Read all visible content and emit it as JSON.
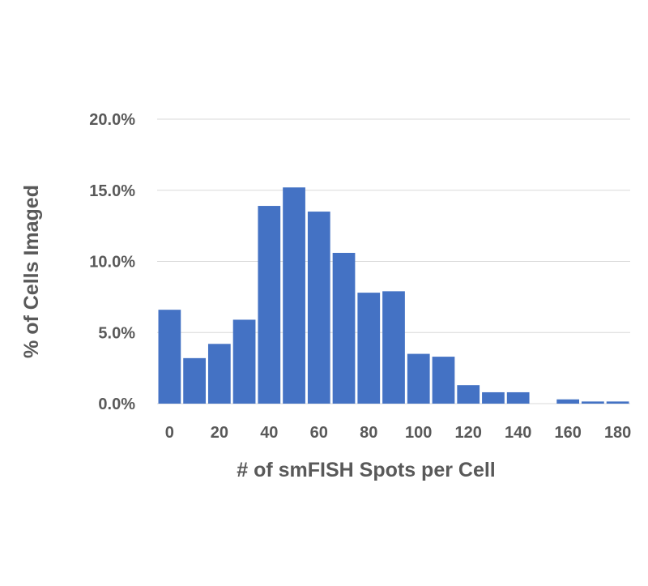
{
  "chart_data": {
    "type": "bar",
    "title": "",
    "xlabel": "# of smFISH Spots per Cell",
    "ylabel": "% of Cells Imaged",
    "ylim": [
      0,
      20
    ],
    "yticks": [
      0,
      5,
      10,
      15,
      20
    ],
    "ytick_labels": [
      "0.0%",
      "5.0%",
      "10.0%",
      "15.0%",
      "20.0%"
    ],
    "bin_starts": [
      0,
      10,
      20,
      30,
      40,
      50,
      60,
      70,
      80,
      90,
      100,
      110,
      120,
      130,
      140,
      150,
      160,
      170,
      180
    ],
    "values": [
      6.6,
      3.2,
      4.2,
      5.9,
      13.9,
      15.2,
      13.5,
      10.6,
      7.8,
      7.9,
      3.5,
      3.3,
      1.3,
      0.8,
      0.8,
      0.0,
      0.3,
      0.15,
      0.15
    ],
    "xtick_labels": [
      "0",
      "20",
      "40",
      "60",
      "80",
      "100",
      "120",
      "140",
      "160",
      "180"
    ],
    "xtick_values": [
      0,
      20,
      40,
      60,
      80,
      100,
      120,
      140,
      160,
      180
    ],
    "grid": true,
    "legend": "none",
    "bar_color": "#4472c4"
  }
}
